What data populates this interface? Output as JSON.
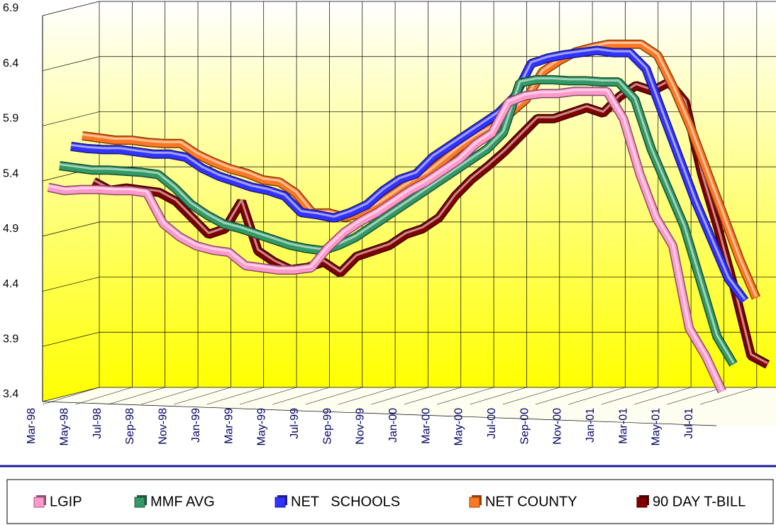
{
  "chart_data": {
    "type": "line3d",
    "categories": [
      "Mar-98",
      null,
      "May-98",
      null,
      "Jul-98",
      null,
      "Sep-98",
      null,
      "Nov-98",
      null,
      "Jan-99",
      null,
      "Mar-99",
      null,
      "May-99",
      null,
      "Jul-99",
      null,
      "Sep-99",
      null,
      "Nov-99",
      null,
      "Jan-00",
      null,
      "Mar-00",
      null,
      "May-00",
      null,
      "Jul-00",
      null,
      "Sep-00",
      null,
      "Nov-00",
      null,
      "Jan-01",
      null,
      "Mar-01",
      null,
      "May-01",
      null,
      "Jul-01",
      null
    ],
    "series": [
      {
        "name": "LGIP",
        "color": "#ff99cc",
        "values": [
          5.33,
          5.3,
          5.31,
          5.31,
          5.3,
          5.3,
          5.28,
          5.0,
          4.88,
          4.8,
          4.76,
          4.74,
          4.62,
          4.6,
          4.58,
          4.58,
          4.6,
          4.78,
          4.92,
          5.02,
          5.1,
          5.2,
          5.3,
          5.38,
          5.48,
          5.58,
          5.72,
          5.82,
          6.1,
          6.16,
          6.18,
          6.18,
          6.2,
          6.2,
          6.2,
          5.95,
          5.45,
          5.05,
          4.8,
          4.05,
          3.8,
          3.48
        ]
      },
      {
        "name": "MMF AVG",
        "color": "#339966",
        "values": [
          5.5,
          5.48,
          5.46,
          5.46,
          5.45,
          5.44,
          5.42,
          5.3,
          5.15,
          5.05,
          4.97,
          4.93,
          4.88,
          4.83,
          4.78,
          4.75,
          4.73,
          4.78,
          4.85,
          4.95,
          5.05,
          5.15,
          5.25,
          5.35,
          5.45,
          5.55,
          5.65,
          5.8,
          6.25,
          6.28,
          6.28,
          6.27,
          6.27,
          6.26,
          6.26,
          6.1,
          5.65,
          5.3,
          4.95,
          4.45,
          3.95,
          3.7
        ]
      },
      {
        "name": "NET   SCHOOLS",
        "color": "#3333ff",
        "values": [
          5.65,
          5.63,
          5.62,
          5.62,
          5.6,
          5.58,
          5.58,
          5.55,
          5.45,
          5.38,
          5.33,
          5.28,
          5.25,
          5.2,
          5.05,
          5.03,
          5.0,
          5.05,
          5.12,
          5.25,
          5.35,
          5.4,
          5.55,
          5.65,
          5.75,
          5.85,
          5.95,
          6.1,
          6.4,
          6.45,
          6.48,
          6.5,
          6.52,
          6.5,
          6.5,
          6.35,
          5.95,
          5.55,
          5.15,
          4.8,
          4.45,
          4.25
        ]
      },
      {
        "name": "NET COUNTY",
        "color": "#ff7722",
        "values": [
          5.72,
          5.7,
          5.68,
          5.68,
          5.66,
          5.65,
          5.65,
          5.55,
          5.48,
          5.42,
          5.38,
          5.32,
          5.3,
          5.2,
          5.02,
          5.02,
          4.98,
          5.02,
          5.1,
          5.2,
          5.3,
          5.38,
          5.5,
          5.62,
          5.72,
          5.8,
          5.92,
          6.05,
          6.3,
          6.4,
          6.48,
          6.52,
          6.55,
          6.55,
          6.55,
          6.45,
          6.15,
          5.8,
          5.4,
          5.0,
          4.6,
          4.25
        ]
      },
      {
        "name": "90 DAY T-BILL",
        "color": "#800000",
        "values": [
          5.28,
          5.2,
          5.22,
          5.2,
          5.18,
          5.1,
          4.95,
          4.8,
          4.85,
          5.1,
          4.65,
          4.55,
          4.48,
          4.5,
          4.55,
          4.45,
          4.6,
          4.65,
          4.7,
          4.8,
          4.85,
          4.95,
          5.15,
          5.3,
          5.42,
          5.55,
          5.7,
          5.85,
          5.85,
          5.9,
          5.95,
          5.9,
          6.05,
          6.15,
          6.1,
          6.18,
          6.0,
          5.35,
          4.85,
          4.3,
          3.7,
          3.62
        ]
      }
    ],
    "ylim": [
      3.4,
      6.9
    ],
    "yticks": [
      3.4,
      3.9,
      4.4,
      4.9,
      5.4,
      5.9,
      6.4,
      6.9
    ],
    "grid": true,
    "legend": "bottom"
  }
}
